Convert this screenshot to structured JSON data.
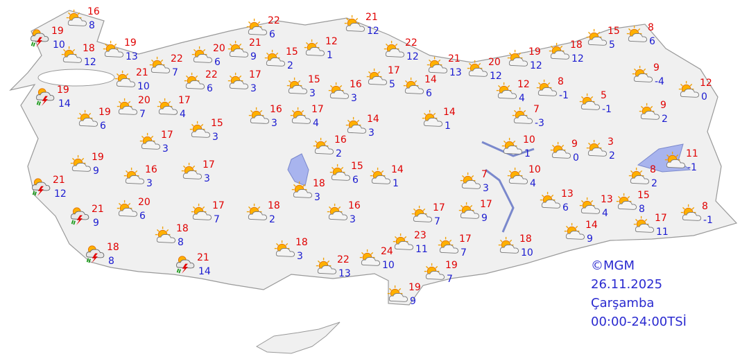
{
  "stations": [
    {
      "high": 16,
      "low": 8
    },
    {
      "high": 19,
      "low": 10
    },
    {
      "high": 18,
      "low": 12
    },
    {
      "high": 19,
      "low": 13
    },
    {
      "high": 22,
      "low": 7
    },
    {
      "high": 20,
      "low": 6
    },
    {
      "high": 21,
      "low": 9
    },
    {
      "high": 22,
      "low": 6
    },
    {
      "high": 15,
      "low": 2
    },
    {
      "high": 12,
      "low": 1
    },
    {
      "high": 21,
      "low": 12
    },
    {
      "high": 22,
      "low": 12
    },
    {
      "high": 21,
      "low": 13
    },
    {
      "high": 20,
      "low": 12
    },
    {
      "high": 19,
      "low": 12
    },
    {
      "high": 18,
      "low": 12
    },
    {
      "high": 15,
      "low": 5
    },
    {
      "high": 8,
      "low": 6
    },
    {
      "high": 21,
      "low": 10
    },
    {
      "high": 22,
      "low": 6
    },
    {
      "high": 17,
      "low": 3
    },
    {
      "high": 15,
      "low": 3
    },
    {
      "high": 16,
      "low": 3
    },
    {
      "high": 17,
      "low": 5
    },
    {
      "high": 14,
      "low": 6
    },
    {
      "high": 19,
      "low": 14
    },
    {
      "high": 19,
      "low": 6
    },
    {
      "high": 20,
      "low": 7
    },
    {
      "high": 17,
      "low": 4
    },
    {
      "high": 15,
      "low": 3
    },
    {
      "high": 16,
      "low": 3
    },
    {
      "high": 17,
      "low": 4
    },
    {
      "high": 14,
      "low": 3
    },
    {
      "high": 14,
      "low": 1
    },
    {
      "high": 12,
      "low": 4
    },
    {
      "high": 8,
      "low": -1
    },
    {
      "high": 5,
      "low": -1
    },
    {
      "high": 9,
      "low": -4
    },
    {
      "high": 12,
      "low": 0
    },
    {
      "high": 9,
      "low": 2
    },
    {
      "high": 7,
      "low": -3
    },
    {
      "high": 17,
      "low": 3
    },
    {
      "high": 19,
      "low": 9
    },
    {
      "high": 16,
      "low": 2
    },
    {
      "high": 10,
      "low": 1
    },
    {
      "high": 9,
      "low": 0
    },
    {
      "high": 3,
      "low": 2
    },
    {
      "high": 11,
      "low": -1
    },
    {
      "high": 16,
      "low": 3
    },
    {
      "high": 17,
      "low": 3
    },
    {
      "high": 15,
      "low": 6
    },
    {
      "high": 14,
      "low": 1
    },
    {
      "high": 7,
      "low": 3
    },
    {
      "high": 10,
      "low": 4
    },
    {
      "high": 8,
      "low": 2
    },
    {
      "high": 21,
      "low": 12
    },
    {
      "high": 18,
      "low": 3
    },
    {
      "high": 20,
      "low": 6
    },
    {
      "high": 17,
      "low": 7
    },
    {
      "high": 18,
      "low": 2
    },
    {
      "high": 16,
      "low": 3
    },
    {
      "high": 17,
      "low": 7
    },
    {
      "high": 17,
      "low": 9
    },
    {
      "high": 13,
      "low": 6
    },
    {
      "high": 13,
      "low": 4
    },
    {
      "high": 15,
      "low": 8
    },
    {
      "high": 8,
      "low": -1
    },
    {
      "high": 21,
      "low": 9
    },
    {
      "high": 18,
      "low": 8
    },
    {
      "high": 17,
      "low": 11
    },
    {
      "high": 14,
      "low": 9
    },
    {
      "high": 18,
      "low": 3
    },
    {
      "high": 23,
      "low": 11
    },
    {
      "high": 17,
      "low": 7
    },
    {
      "high": 18,
      "low": 10
    },
    {
      "high": 18,
      "low": 8
    },
    {
      "high": 21,
      "low": 14
    },
    {
      "high": 22,
      "low": 13
    },
    {
      "high": 24,
      "low": 10
    },
    {
      "high": 19,
      "low": 7
    },
    {
      "high": 19,
      "low": 9
    }
  ],
  "credits": {
    "source": "©MGM",
    "date": "26.11.2025",
    "day": "Çarşamba",
    "period": "00:00-24:00TSİ"
  }
}
